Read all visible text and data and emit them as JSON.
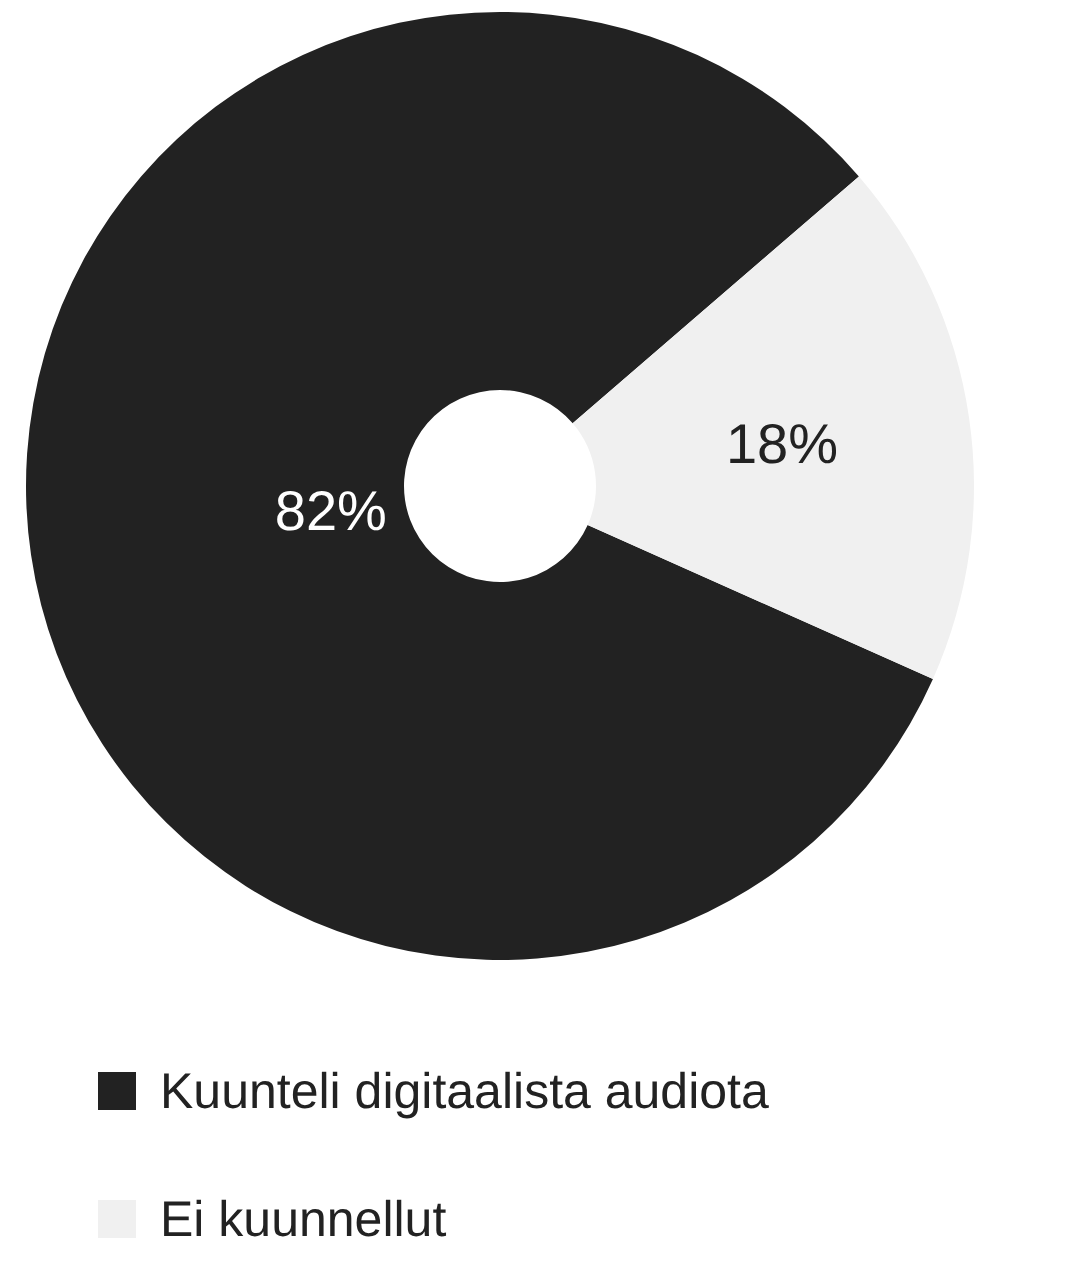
{
  "chart_data": {
    "type": "donut",
    "categories": [
      "Kuunteli digitaalista audiota",
      "Ei kuunnellut"
    ],
    "values": [
      82,
      18
    ],
    "colors": [
      "#222222",
      "#f0f0f0"
    ],
    "value_labels": [
      "82%",
      "18%"
    ],
    "legend": "bottom"
  }
}
